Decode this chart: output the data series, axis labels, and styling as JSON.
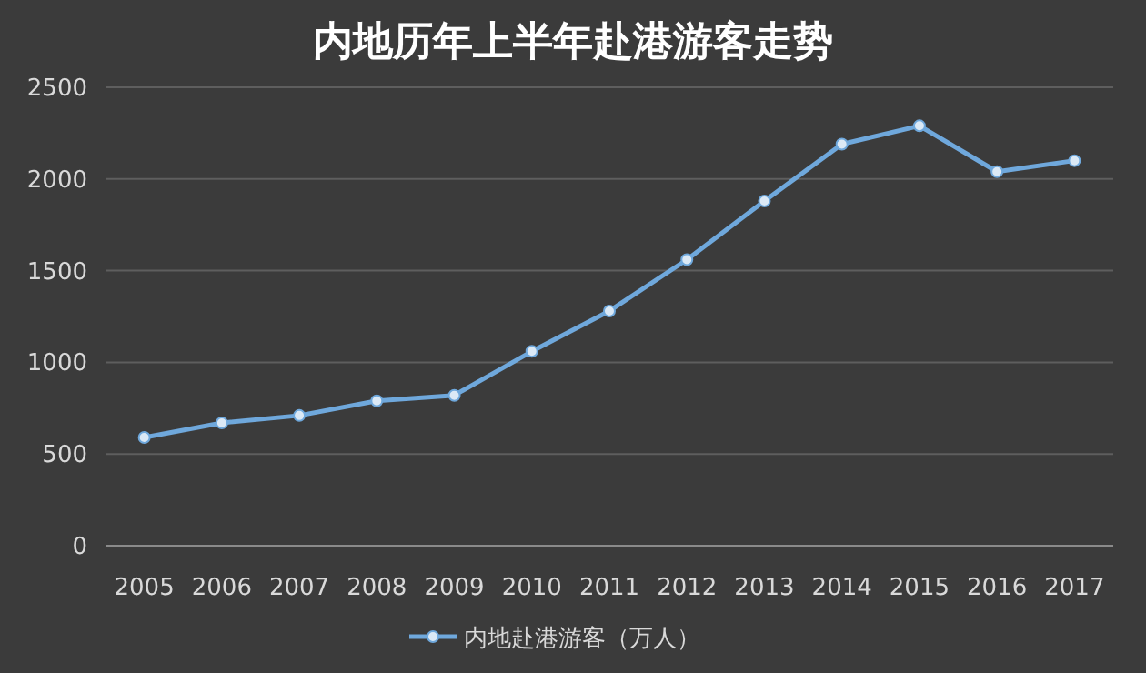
{
  "chart_data": {
    "type": "line",
    "title": "内地历年上半年赴港游客走势",
    "categories": [
      "2005",
      "2006",
      "2007",
      "2008",
      "2009",
      "2010",
      "2011",
      "2012",
      "2013",
      "2014",
      "2015",
      "2016",
      "2017"
    ],
    "series": [
      {
        "name": "内地赴港游客（万人）",
        "color": "#6fa8dc",
        "values": [
          590,
          670,
          710,
          790,
          820,
          1060,
          1280,
          1560,
          1880,
          2190,
          2290,
          2040,
          2100
        ]
      }
    ],
    "ylim": [
      0,
      2500
    ],
    "yticks": [
      0,
      500,
      1000,
      1500,
      2000,
      2500
    ],
    "grid": "y",
    "legend": "bottom",
    "marker": "circle",
    "line_style": "solid"
  }
}
